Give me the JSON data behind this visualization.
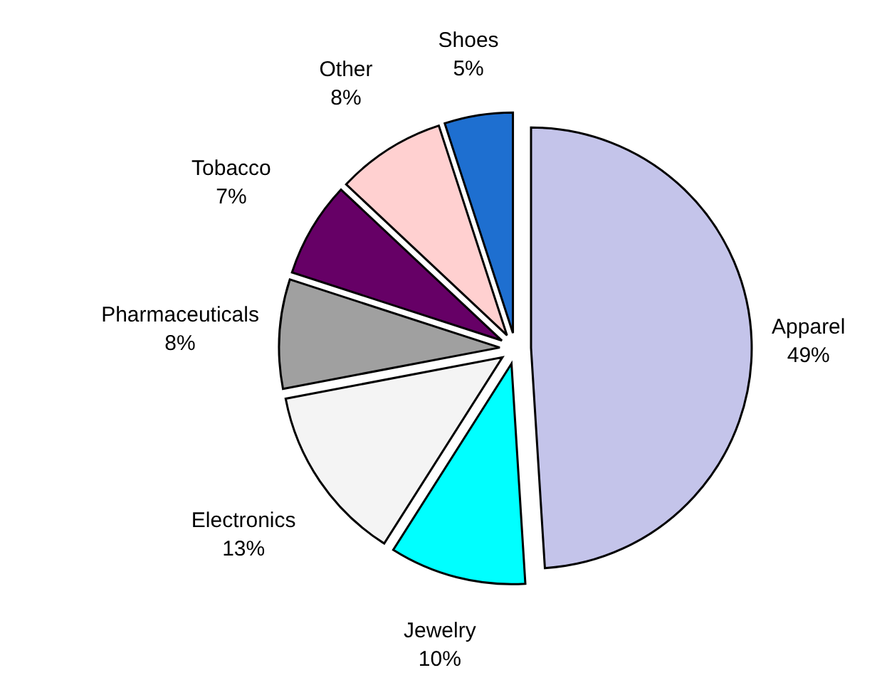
{
  "chart_data": {
    "type": "pie",
    "categories": [
      "Apparel",
      "Jewelry",
      "Electronics",
      "Pharmaceuticals",
      "Tobacco",
      "Other",
      "Shoes"
    ],
    "values": [
      49,
      10,
      13,
      8,
      7,
      8,
      5
    ],
    "value_labels": [
      "49%",
      "10%",
      "13%",
      "8%",
      "7%",
      "8%",
      "5%"
    ],
    "colors": [
      "#c4c4ea",
      "#00ffff",
      "#f4f4f4",
      "#a0a0a0",
      "#660066",
      "#ffd0d0",
      "#1e6fd0"
    ]
  }
}
